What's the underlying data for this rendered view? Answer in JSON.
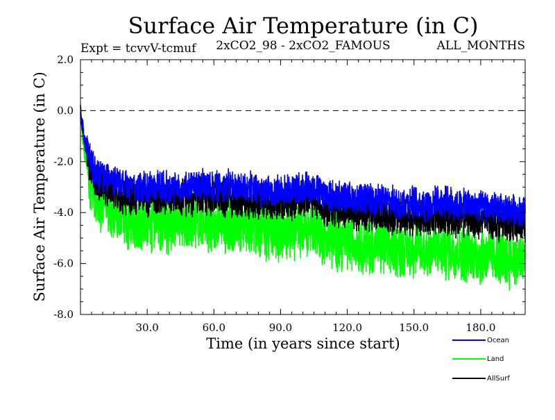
{
  "chart_data": {
    "type": "line",
    "title": "Surface Air Temperature (in C)",
    "subtitle_left": "Expt = tcvvV-tcmuf",
    "subtitle_center": "2xCO2_98 - 2xCO2_FAMOUS",
    "subtitle_right": "ALL_MONTHS",
    "xlabel": "Time (in years since start)",
    "ylabel": "Surface Air Temperature (in C)",
    "xlim": [
      0,
      200
    ],
    "ylim": [
      -8.0,
      2.0
    ],
    "x_ticks": [
      30,
      60,
      90,
      120,
      150,
      180
    ],
    "x_tick_labels": [
      "30.0",
      "60.0",
      "90.0",
      "120.0",
      "150.0",
      "180.0"
    ],
    "y_ticks": [
      2,
      0,
      -2,
      -4,
      -6,
      -8
    ],
    "y_tick_labels": [
      "2.0",
      "0.0",
      "-2.0",
      "-4.0",
      "-6.0",
      "-8.0"
    ],
    "reference_line": {
      "y": 0,
      "style": "dashed"
    },
    "legend_position": "bottom-right",
    "x": [
      0,
      2,
      4,
      6,
      8,
      10,
      15,
      20,
      25,
      30,
      35,
      40,
      45,
      50,
      55,
      60,
      65,
      70,
      75,
      80,
      85,
      90,
      95,
      100,
      105,
      110,
      115,
      120,
      125,
      130,
      135,
      140,
      145,
      150,
      155,
      160,
      165,
      170,
      175,
      180,
      185,
      190,
      195,
      200
    ],
    "series": [
      {
        "name": "Ocean",
        "color": "#0000ff",
        "values": [
          0.0,
          -1.2,
          -1.8,
          -2.3,
          -2.5,
          -2.6,
          -2.8,
          -2.9,
          -3.0,
          -3.0,
          -3.0,
          -3.0,
          -3.0,
          -3.0,
          -2.9,
          -3.0,
          -2.9,
          -3.0,
          -3.0,
          -3.1,
          -3.2,
          -3.1,
          -3.1,
          -3.0,
          -3.0,
          -3.3,
          -3.4,
          -3.4,
          -3.5,
          -3.5,
          -3.5,
          -3.6,
          -3.6,
          -3.6,
          -3.7,
          -3.6,
          -3.6,
          -3.7,
          -3.7,
          -3.8,
          -3.8,
          -3.9,
          -3.9,
          -4.0
        ]
      },
      {
        "name": "Land",
        "color": "#00ff00",
        "values": [
          0.0,
          -1.6,
          -2.6,
          -3.2,
          -3.5,
          -3.7,
          -4.0,
          -4.2,
          -4.3,
          -4.3,
          -4.3,
          -4.4,
          -4.4,
          -4.4,
          -4.3,
          -4.4,
          -4.4,
          -4.5,
          -4.5,
          -4.6,
          -4.8,
          -4.7,
          -4.7,
          -4.6,
          -4.6,
          -5.0,
          -5.1,
          -5.1,
          -5.2,
          -5.3,
          -5.3,
          -5.4,
          -5.4,
          -5.4,
          -5.5,
          -5.4,
          -5.5,
          -5.5,
          -5.6,
          -5.7,
          -5.7,
          -5.8,
          -5.8,
          -5.9
        ]
      },
      {
        "name": "AllSurf",
        "color": "#000000",
        "values": [
          0.0,
          -1.3,
          -2.0,
          -2.6,
          -2.8,
          -2.9,
          -3.1,
          -3.3,
          -3.4,
          -3.4,
          -3.4,
          -3.4,
          -3.4,
          -3.4,
          -3.3,
          -3.4,
          -3.4,
          -3.5,
          -3.5,
          -3.6,
          -3.6,
          -3.6,
          -3.6,
          -3.5,
          -3.5,
          -3.8,
          -3.9,
          -3.9,
          -4.0,
          -4.0,
          -4.0,
          -4.1,
          -4.1,
          -4.2,
          -4.2,
          -4.1,
          -4.2,
          -4.2,
          -4.2,
          -4.3,
          -4.3,
          -4.4,
          -4.4,
          -4.5
        ]
      }
    ],
    "grid": false
  }
}
